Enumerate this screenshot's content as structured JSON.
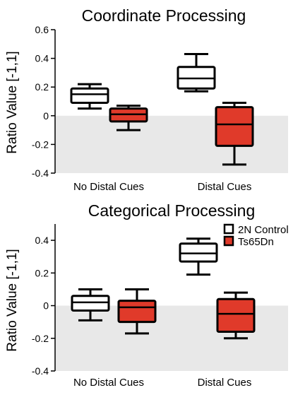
{
  "colors": {
    "control": "#ffffff",
    "ts65dn": "#e03a2a",
    "shade": "#e8e8e8"
  },
  "legend": {
    "items": [
      {
        "label": "2N Control",
        "color": "#ffffff"
      },
      {
        "label": "Ts65Dn",
        "color": "#e03a2a"
      }
    ]
  },
  "chart_data": [
    {
      "type": "box",
      "title": "Coordinate Processing",
      "ylabel": "Ratio Value [-1,1]",
      "ylim": [
        -0.4,
        0.6
      ],
      "yticks": [
        "0.6",
        "0.4",
        "0.2",
        "0",
        "-0.2",
        "-0.4"
      ],
      "ytick_values": [
        0.6,
        0.4,
        0.2,
        0,
        -0.2,
        -0.4
      ],
      "shade_below_zero": true,
      "categories": [
        "No Distal Cues",
        "Distal Cues"
      ],
      "series": [
        {
          "name": "2N Control",
          "color": "#ffffff",
          "boxes": [
            {
              "whisker_low": 0.05,
              "q1": 0.09,
              "median": 0.15,
              "q3": 0.19,
              "whisker_high": 0.22
            },
            {
              "whisker_low": 0.17,
              "q1": 0.19,
              "median": 0.26,
              "q3": 0.34,
              "whisker_high": 0.43
            }
          ]
        },
        {
          "name": "Ts65Dn",
          "color": "#e03a2a",
          "boxes": [
            {
              "whisker_low": -0.1,
              "q1": -0.04,
              "median": 0.01,
              "q3": 0.05,
              "whisker_high": 0.07
            },
            {
              "whisker_low": -0.34,
              "q1": -0.21,
              "median": -0.06,
              "q3": 0.06,
              "whisker_high": 0.09
            }
          ]
        }
      ]
    },
    {
      "type": "box",
      "title": "Categorical Processing",
      "ylabel": "Ratio Value [-1,1]",
      "ylim": [
        -0.4,
        0.5
      ],
      "yticks": [
        "0.4",
        "0.2",
        "0",
        "-0.2",
        "-0.4"
      ],
      "ytick_values": [
        0.4,
        0.2,
        0,
        -0.2,
        -0.4
      ],
      "shade_below_zero": true,
      "categories": [
        "No Distal Cues",
        "Distal Cues"
      ],
      "series": [
        {
          "name": "2N Control",
          "color": "#ffffff",
          "boxes": [
            {
              "whisker_low": -0.09,
              "q1": -0.03,
              "median": 0.02,
              "q3": 0.06,
              "whisker_high": 0.1
            },
            {
              "whisker_low": 0.19,
              "q1": 0.27,
              "median": 0.32,
              "q3": 0.38,
              "whisker_high": 0.41
            }
          ]
        },
        {
          "name": "Ts65Dn",
          "color": "#e03a2a",
          "boxes": [
            {
              "whisker_low": -0.17,
              "q1": -0.1,
              "median": -0.01,
              "q3": 0.03,
              "whisker_high": 0.1
            },
            {
              "whisker_low": -0.2,
              "q1": -0.16,
              "median": -0.05,
              "q3": 0.04,
              "whisker_high": 0.08
            }
          ]
        }
      ]
    }
  ]
}
